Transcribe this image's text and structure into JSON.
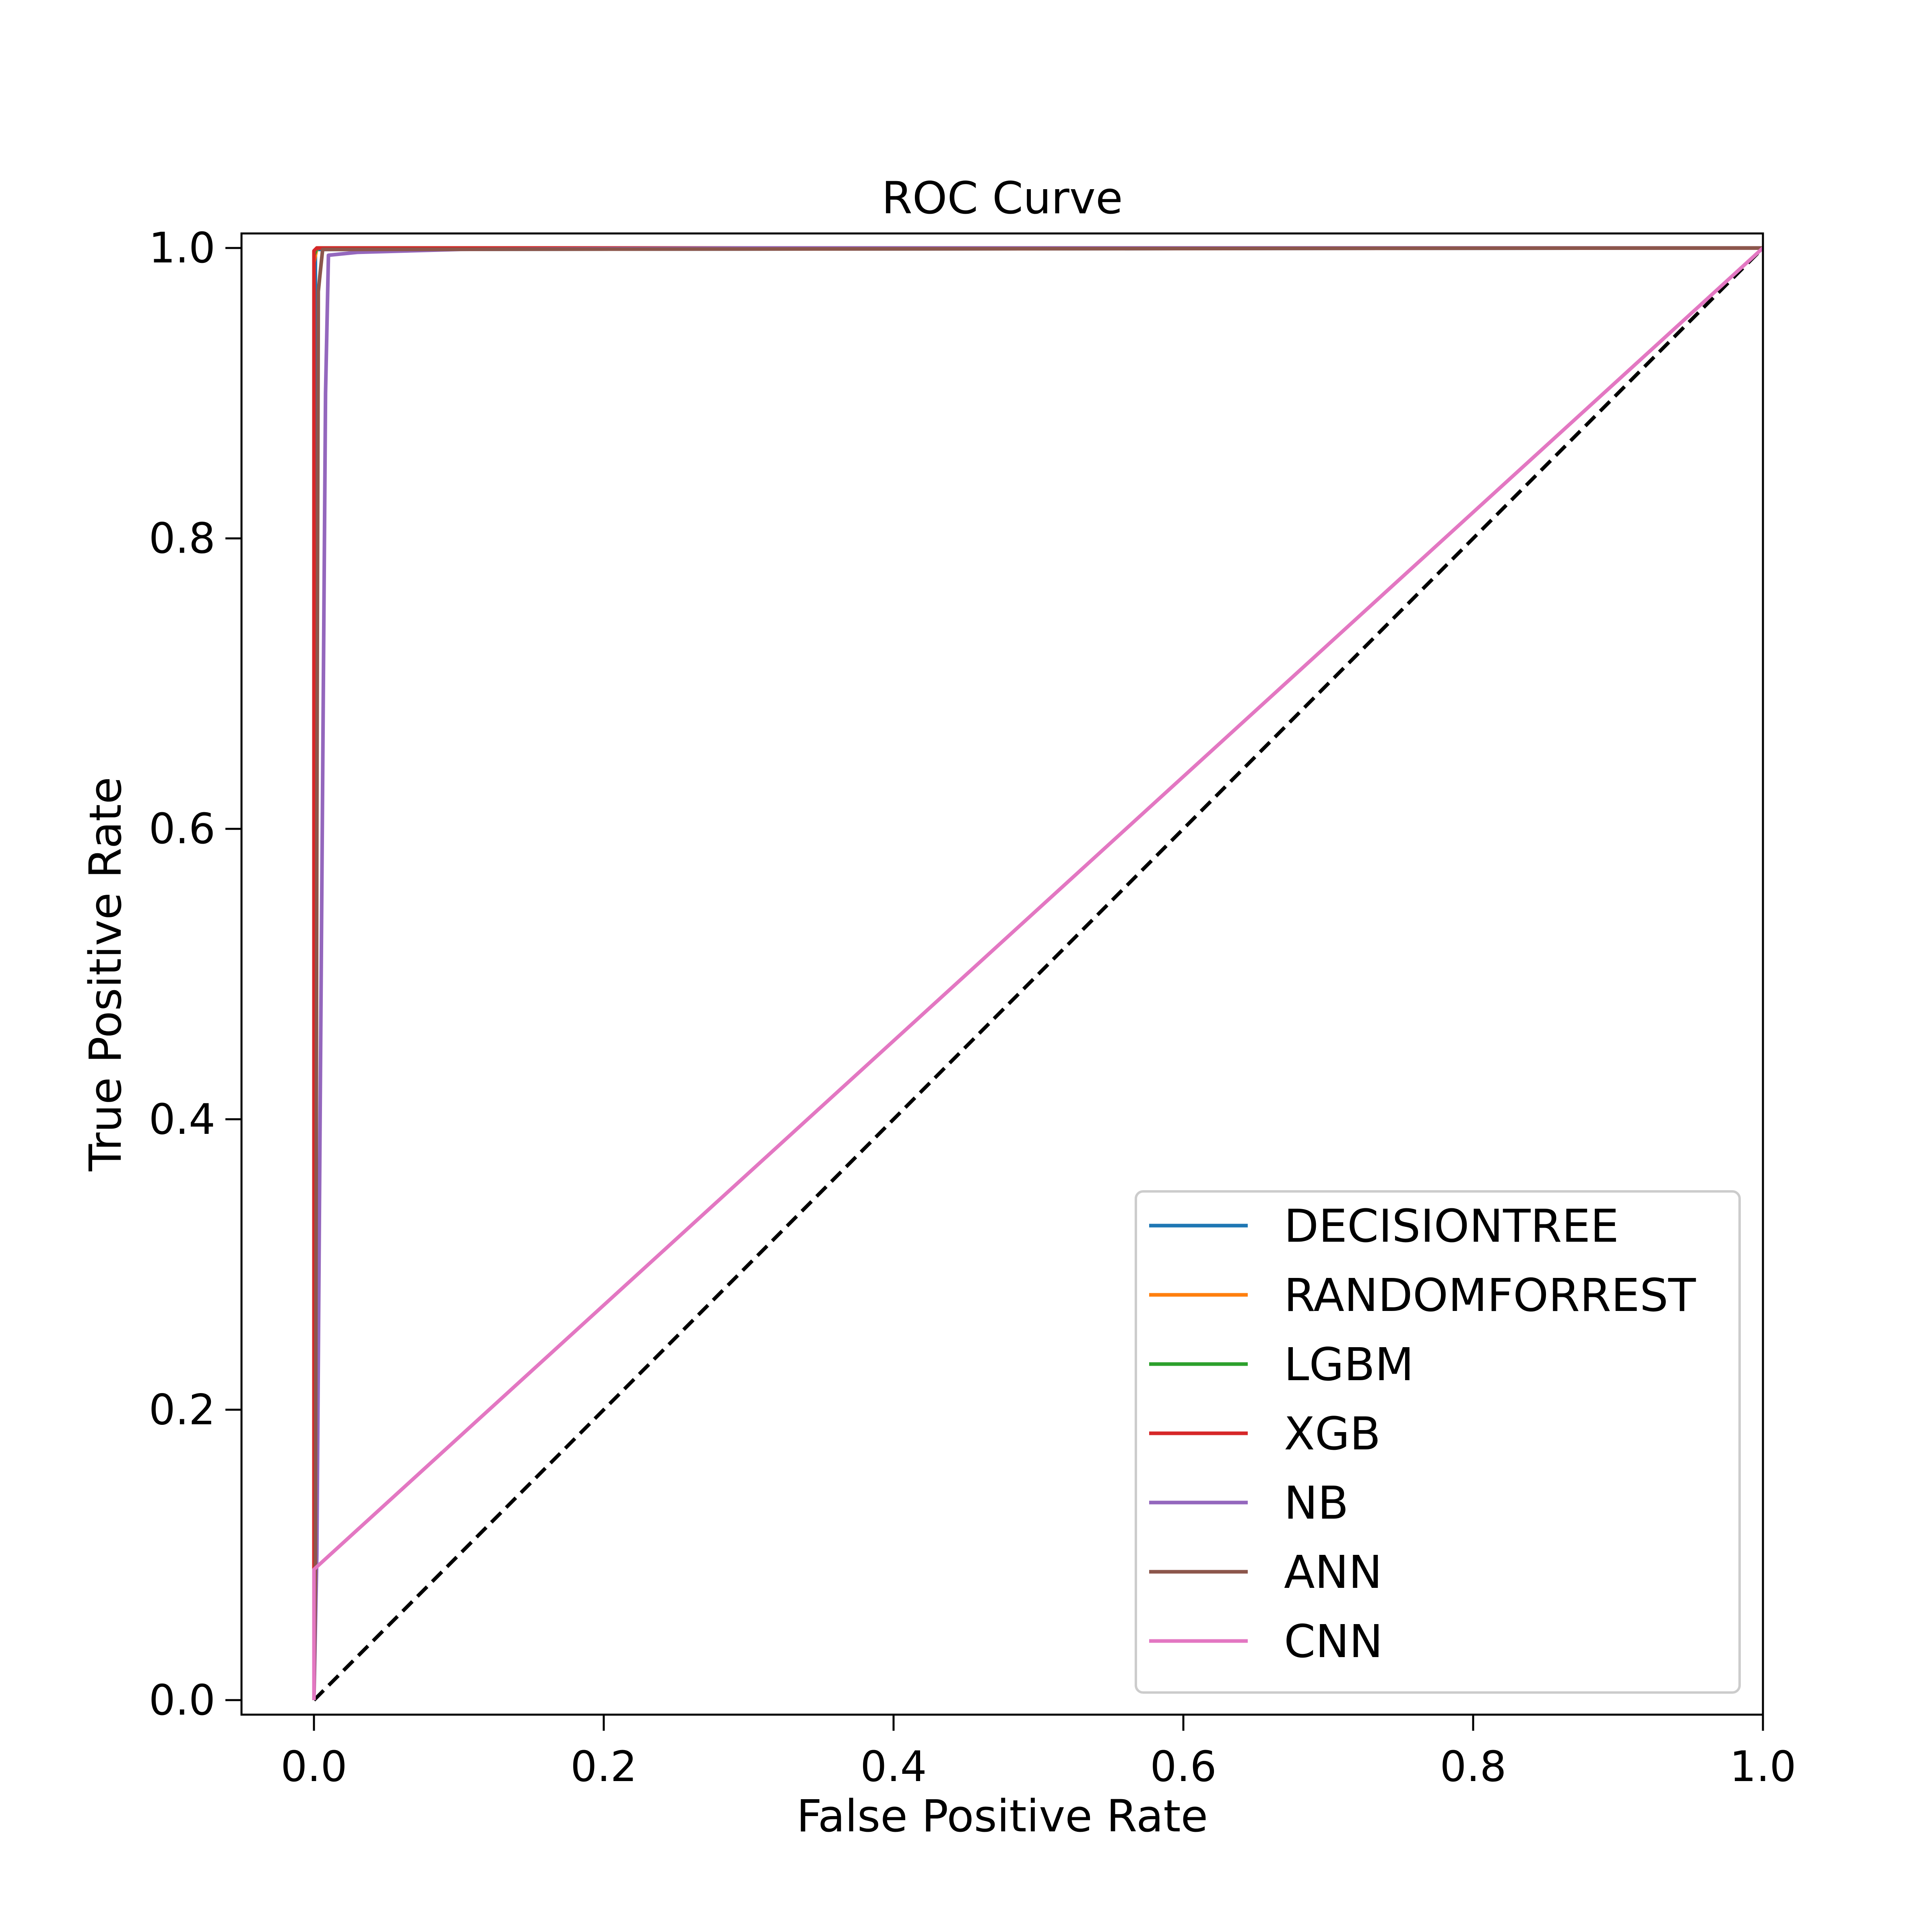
{
  "chart_data": {
    "type": "line",
    "title": "ROC Curve",
    "xlabel": "False Positive Rate",
    "ylabel": "True Positive Rate",
    "xlim": [
      -0.05,
      1.0
    ],
    "ylim": [
      -0.01,
      1.01
    ],
    "xticks": [
      "0.0",
      "0.2",
      "0.4",
      "0.6",
      "0.8",
      "1.0"
    ],
    "yticks": [
      "0.0",
      "0.2",
      "0.4",
      "0.6",
      "0.8",
      "1.0"
    ],
    "xtick_values": [
      0.0,
      0.2,
      0.4,
      0.6,
      0.8,
      1.0
    ],
    "ytick_values": [
      0.0,
      0.2,
      0.4,
      0.6,
      0.8,
      1.0
    ],
    "grid": false,
    "legend_position": "lower-right",
    "series": [
      {
        "name": "DECISIONTREE",
        "color": "#1f77b4",
        "x": [
          0.0,
          0.001,
          1.0
        ],
        "y": [
          0.0,
          0.999,
          1.0
        ]
      },
      {
        "name": "RANDOMFORREST",
        "color": "#ff7f0e",
        "x": [
          0.0,
          0.0,
          0.002,
          1.0
        ],
        "y": [
          0.0,
          0.99,
          1.0,
          1.0
        ]
      },
      {
        "name": "LGBM",
        "color": "#2ca02c",
        "x": [
          0.0,
          0.0,
          0.002,
          1.0
        ],
        "y": [
          0.0,
          0.995,
          1.0,
          1.0
        ]
      },
      {
        "name": "XGB",
        "color": "#d62728",
        "x": [
          0.0,
          0.0,
          0.002,
          1.0
        ],
        "y": [
          0.0,
          0.998,
          1.0,
          1.0
        ]
      },
      {
        "name": "NB",
        "color": "#9467bd",
        "x": [
          0.0,
          0.002,
          0.005,
          0.008,
          0.01,
          0.03,
          0.1,
          0.3,
          1.0
        ],
        "y": [
          0.0,
          0.1,
          0.5,
          0.9,
          0.995,
          0.997,
          0.999,
          1.0,
          1.0
        ]
      },
      {
        "name": "ANN",
        "color": "#8c564b",
        "x": [
          0.0,
          0.001,
          0.002,
          0.003,
          0.004,
          0.006,
          1.0
        ],
        "y": [
          0.0,
          0.09,
          0.6,
          0.97,
          0.98,
          0.999,
          1.0
        ]
      },
      {
        "name": "CNN",
        "color": "#e377c2",
        "x": [
          0.0,
          0.0,
          1.0
        ],
        "y": [
          0.0,
          0.09,
          1.0
        ]
      }
    ],
    "reference_line": {
      "x": [
        0.0,
        1.0
      ],
      "y": [
        0.0,
        1.0
      ],
      "color": "#000000",
      "style": "dashed"
    }
  }
}
